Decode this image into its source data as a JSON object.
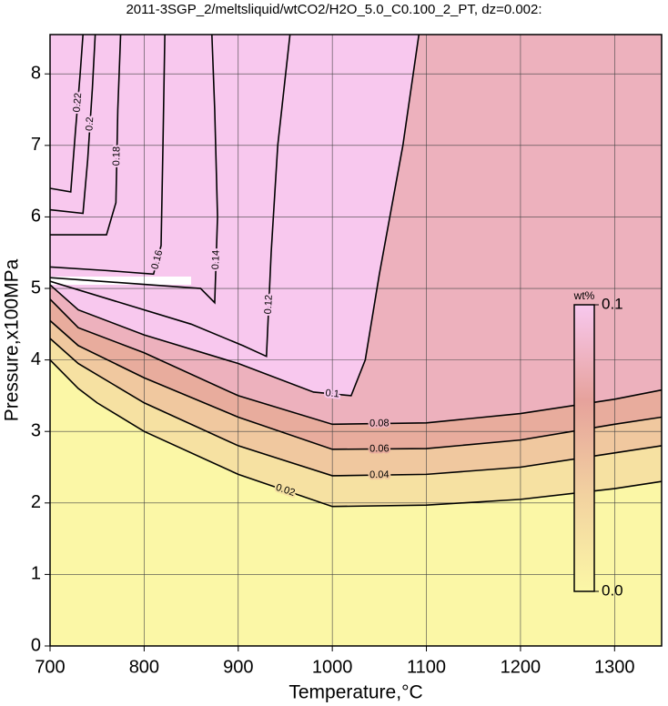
{
  "chart_data": {
    "type": "contour",
    "title": "2011-3SGP_2/meltsliquid/wtCO2/H2O_5.0_C0.100_2_PT, dz=0.002:",
    "x_label": "Temperature,°C",
    "y_label": "Pressure,x100MPa",
    "xlim": [
      700,
      1350
    ],
    "ylim": [
      0,
      8.55
    ],
    "xticks": [
      700,
      800,
      900,
      1000,
      1100,
      1200,
      1300
    ],
    "yticks": [
      0,
      1,
      2,
      3,
      4,
      5,
      6,
      7,
      8
    ],
    "grid": true,
    "line_color": "#000000",
    "colorbar": {
      "label": "wt%",
      "lim": [
        0,
        0.1
      ],
      "ticks": [
        {
          "value": 0,
          "label": "0.0"
        },
        0.1
      ],
      "colors": [
        "#fbf7a6",
        "#f2d2a0",
        "#e6a29c",
        "#f8c8ee"
      ]
    },
    "contours": [
      {
        "level": 0.02,
        "x": [
          700,
          730,
          750,
          800,
          900,
          1000,
          1100,
          1200,
          1300,
          1350
        ],
        "y": [
          4.0,
          3.6,
          3.4,
          3.0,
          2.4,
          1.95,
          1.97,
          2.05,
          2.2,
          2.3
        ]
      },
      {
        "level": 0.04,
        "x": [
          700,
          730,
          800,
          900,
          1000,
          1100,
          1200,
          1300,
          1350
        ],
        "y": [
          4.3,
          3.95,
          3.4,
          2.8,
          2.38,
          2.4,
          2.5,
          2.7,
          2.8
        ]
      },
      {
        "level": 0.06,
        "x": [
          700,
          730,
          800,
          900,
          1000,
          1100,
          1200,
          1300,
          1350
        ],
        "y": [
          4.55,
          4.2,
          3.75,
          3.2,
          2.75,
          2.76,
          2.88,
          3.1,
          3.2
        ]
      },
      {
        "level": 0.08,
        "x": [
          700,
          730,
          800,
          900,
          1000,
          1100,
          1200,
          1300,
          1350
        ],
        "y": [
          4.85,
          4.45,
          4.1,
          3.5,
          3.1,
          3.12,
          3.25,
          3.45,
          3.58
        ]
      },
      {
        "level": 0.1,
        "x": [
          700,
          730,
          800,
          900,
          980,
          1020,
          1035,
          1050,
          1075,
          1092
        ],
        "y": [
          5.05,
          4.7,
          4.35,
          3.95,
          3.55,
          3.5,
          4.0,
          5.2,
          7.0,
          8.55
        ]
      },
      {
        "level": 0.12,
        "x": [
          700,
          850,
          905,
          930,
          935,
          942,
          955
        ],
        "y": [
          5.1,
          4.5,
          4.2,
          4.05,
          5.5,
          7.0,
          8.55
        ]
      },
      {
        "level": 0.14,
        "x": [
          700,
          860,
          875,
          878,
          875,
          872
        ],
        "y": [
          5.15,
          5.0,
          4.8,
          6.0,
          7.5,
          8.55
        ]
      },
      {
        "level": 0.16,
        "x": [
          700,
          760,
          810,
          818,
          820,
          822
        ],
        "y": [
          5.3,
          5.25,
          5.2,
          5.6,
          7.0,
          8.55
        ]
      },
      {
        "level": 0.18,
        "x": [
          700,
          760,
          770,
          772,
          775
        ],
        "y": [
          5.75,
          5.75,
          6.2,
          7.5,
          8.55
        ]
      },
      {
        "level": 0.2,
        "x": [
          700,
          735,
          740,
          745,
          748
        ],
        "y": [
          6.1,
          6.05,
          6.8,
          7.8,
          8.55
        ]
      },
      {
        "level": 0.22,
        "x": [
          700,
          722,
          727,
          732,
          735
        ],
        "y": [
          6.4,
          6.35,
          7.2,
          8.0,
          8.55
        ]
      }
    ]
  }
}
